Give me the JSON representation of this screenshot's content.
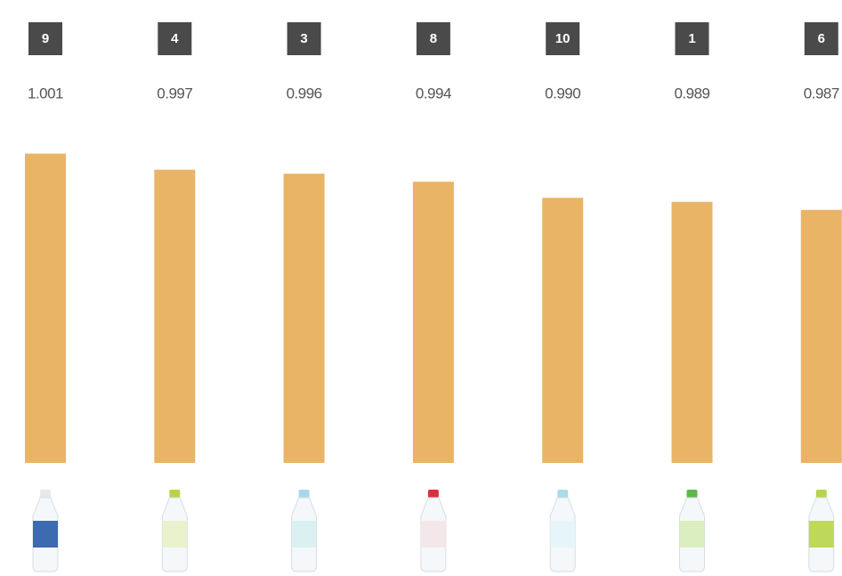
{
  "chart_data": {
    "type": "bar",
    "categories": [
      "9",
      "4",
      "3",
      "8",
      "10",
      "1",
      "6"
    ],
    "values": [
      1.001,
      0.997,
      0.996,
      0.994,
      0.99,
      0.989,
      0.987
    ],
    "value_labels": [
      "1.001",
      "0.997",
      "0.996",
      "0.994",
      "0.990",
      "0.989",
      "0.987"
    ],
    "color": "#e9b466",
    "ylim": [
      0.924,
      1.006
    ]
  }
}
